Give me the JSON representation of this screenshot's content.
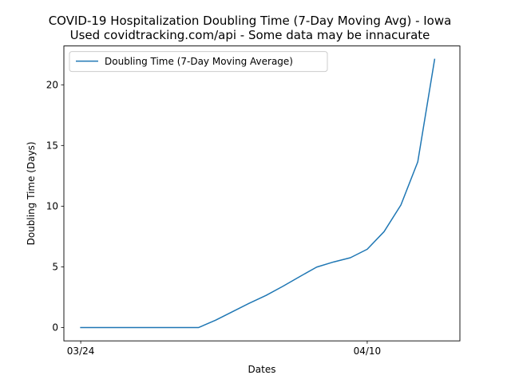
{
  "chart_data": {
    "type": "line",
    "title": "COVID-19 Hospitalization Doubling Time (7-Day Moving Avg) - Iowa",
    "subtitle": "Used covidtracking.com/api - Some data may be innacurate",
    "xlabel": "Dates",
    "ylabel": "Doubling Time (Days)",
    "x_tick_labels": [
      "03/24",
      "04/10"
    ],
    "y_ticks": [
      0,
      5,
      10,
      15,
      20
    ],
    "x_index_range": [
      -1,
      22.5
    ],
    "ylim": [
      -1.1,
      23.2
    ],
    "grid": false,
    "legend_position": "upper-left",
    "series": [
      {
        "name": "Doubling Time (7-Day Moving Average)",
        "color": "#1f77b4",
        "x_dates": [
          "03/24",
          "03/25",
          "03/26",
          "03/27",
          "03/28",
          "03/29",
          "03/30",
          "03/31",
          "04/01",
          "04/02",
          "04/03",
          "04/04",
          "04/05",
          "04/06",
          "04/07",
          "04/08",
          "04/09",
          "04/10",
          "04/11",
          "04/12",
          "04/13",
          "04/14"
        ],
        "values": [
          0,
          0,
          0,
          0,
          0,
          0,
          0,
          0,
          0.6,
          1.3,
          2.0,
          2.65,
          3.4,
          4.2,
          4.98,
          5.4,
          5.75,
          6.45,
          7.9,
          10.1,
          13.65,
          22.1
        ]
      }
    ]
  }
}
